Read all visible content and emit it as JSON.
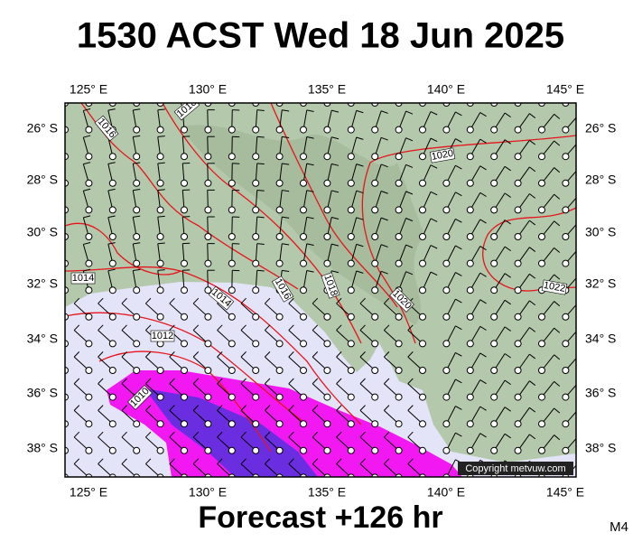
{
  "header": {
    "title": "1530 ACST Wed 18 Jun 2025"
  },
  "map": {
    "lon_labels": [
      "125° E",
      "130° E",
      "135° E",
      "140° E",
      "145° E"
    ],
    "lat_labels": [
      "26° S",
      "28° S",
      "30° S",
      "32° S",
      "34° S",
      "36° S",
      "38° S"
    ],
    "isobar_labels": [
      "1016",
      "1018",
      "1020",
      "1014",
      "1014",
      "1016",
      "1018",
      "1020",
      "1022",
      "1012",
      "1010"
    ],
    "copyright": "Copyright metvuw.com"
  },
  "footer": {
    "forecast": "Forecast +126 hr",
    "model": "M4"
  }
}
